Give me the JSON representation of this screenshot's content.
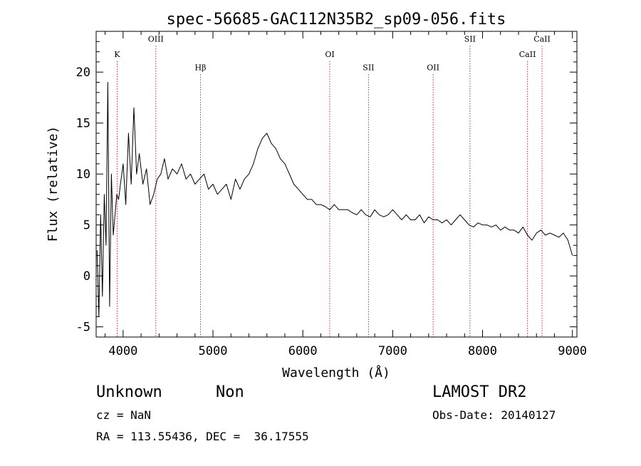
{
  "chart_data": {
    "type": "line",
    "title": "spec-56685-GAC112N35B2_sp09-056.fits",
    "xlabel": "Wavelength (Å)",
    "ylabel": "Flux (relative)",
    "xlim": [
      3700,
      9050
    ],
    "ylim": [
      -6,
      24
    ],
    "xticks": [
      4000,
      5000,
      6000,
      7000,
      8000,
      9000
    ],
    "yticks": [
      -5,
      0,
      5,
      10,
      15,
      20
    ],
    "grid": false,
    "series": [
      {
        "x": [
          3710,
          3730,
          3750,
          3770,
          3790,
          3810,
          3830,
          3850,
          3870,
          3890,
          3910,
          3930,
          3950,
          3970,
          4000,
          4030,
          4060,
          4090,
          4120,
          4150,
          4180,
          4220,
          4260,
          4300,
          4340,
          4380,
          4420,
          4460,
          4500,
          4550,
          4600,
          4650,
          4700,
          4750,
          4800,
          4850,
          4900,
          4950,
          5000,
          5050,
          5100,
          5150,
          5200,
          5250,
          5300,
          5350,
          5400,
          5450,
          5500,
          5550,
          5600,
          5650,
          5700,
          5750,
          5800,
          5850,
          5900,
          5950,
          6000,
          6050,
          6100,
          6150,
          6200,
          6250,
          6300,
          6350,
          6400,
          6450,
          6500,
          6550,
          6600,
          6650,
          6700,
          6750,
          6800,
          6850,
          6900,
          6950,
          7000,
          7050,
          7100,
          7150,
          7200,
          7250,
          7300,
          7350,
          7400,
          7450,
          7500,
          7550,
          7600,
          7650,
          7700,
          7750,
          7800,
          7850,
          7900,
          7950,
          8000,
          8050,
          8100,
          8150,
          8200,
          8250,
          8300,
          8350,
          8400,
          8450,
          8500,
          8550,
          8600,
          8650,
          8700,
          8750,
          8800,
          8850,
          8900,
          8950,
          9000
        ],
        "y": [
          2.5,
          -4.0,
          6.0,
          -2.0,
          8.0,
          3.0,
          19.0,
          -3.0,
          10.0,
          4.0,
          6.0,
          8.0,
          7.5,
          9.0,
          11.0,
          7.0,
          14.0,
          9.0,
          16.5,
          10.0,
          12.0,
          9.0,
          10.5,
          7.0,
          8.0,
          9.5,
          10.0,
          11.5,
          9.5,
          10.5,
          10.0,
          11.0,
          9.5,
          10.0,
          9.0,
          9.5,
          10.0,
          8.5,
          9.0,
          8.0,
          8.5,
          9.0,
          7.5,
          9.5,
          8.5,
          9.5,
          10.0,
          11.0,
          12.5,
          13.5,
          14.0,
          13.0,
          12.5,
          11.5,
          11.0,
          10.0,
          9.0,
          8.5,
          8.0,
          7.5,
          7.5,
          7.0,
          7.0,
          6.8,
          6.5,
          7.0,
          6.5,
          6.5,
          6.5,
          6.2,
          6.0,
          6.5,
          6.0,
          5.8,
          6.5,
          6.0,
          5.8,
          6.0,
          6.5,
          6.0,
          5.5,
          6.0,
          5.5,
          5.5,
          6.0,
          5.2,
          5.8,
          5.5,
          5.5,
          5.2,
          5.5,
          5.0,
          5.5,
          6.0,
          5.5,
          5.0,
          4.8,
          5.2,
          5.0,
          5.0,
          4.8,
          5.0,
          4.5,
          4.8,
          4.5,
          4.5,
          4.2,
          4.8,
          4.0,
          3.5,
          4.2,
          4.5,
          4.0,
          4.2,
          4.0,
          3.8,
          4.2,
          3.5,
          2.0
        ]
      }
    ],
    "lines": [
      {
        "name": "K",
        "x": 3934,
        "label_y": 21.5
      },
      {
        "name": "OIII",
        "x": 4364,
        "label_y": 23.0
      },
      {
        "name": "Hβ",
        "x": 4861,
        "label_y": 20.2
      },
      {
        "name": "OI",
        "x": 6300,
        "label_y": 21.5
      },
      {
        "name": "SII",
        "x": 6731,
        "label_y": 20.2
      },
      {
        "name": "OII",
        "x": 7450,
        "label_y": 20.2
      },
      {
        "name": "SII",
        "x": 7860,
        "label_y": 23.0
      },
      {
        "name": "CaII",
        "x": 8500,
        "label_y": 21.5
      },
      {
        "name": "CaII",
        "x": 8662,
        "label_y": 23.0
      }
    ]
  },
  "info": {
    "class": "Unknown",
    "subclass": "Non",
    "survey": "LAMOST DR2",
    "cz": "cz = NaN",
    "obs_date": "Obs-Date: 20140127",
    "radec": "RA = 113.55436, DEC =  36.17555"
  }
}
